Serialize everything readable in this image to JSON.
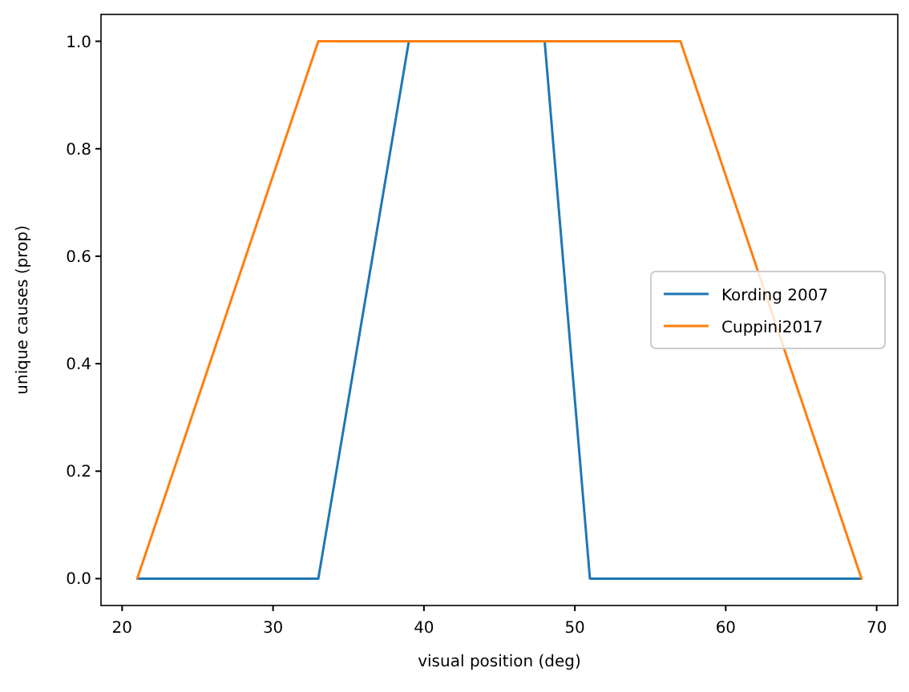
{
  "chart_data": {
    "type": "line",
    "xlabel": "visual position (deg)",
    "ylabel": "unique causes (prop)",
    "series": [
      {
        "name": "Kording 2007",
        "color": "#1f77b4",
        "x": [
          21,
          33,
          39,
          48,
          51,
          69
        ],
        "values": [
          0,
          0,
          1,
          1,
          0,
          0
        ]
      },
      {
        "name": "Cuppini2017",
        "color": "#ff7f0e",
        "x": [
          21,
          33,
          57,
          69
        ],
        "values": [
          0,
          1,
          1,
          0
        ]
      }
    ],
    "xlim": [
      18.6,
      71.4
    ],
    "ylim": [
      -0.05,
      1.05
    ],
    "xticks": [
      20,
      30,
      40,
      50,
      60,
      70
    ],
    "yticks": [
      {
        "value": 0,
        "label": "0.0"
      },
      0.2,
      0.4,
      0.6,
      0.8,
      {
        "value": 1,
        "label": "1.0"
      }
    ],
    "legend": "center right",
    "grid": false,
    "marker": "none",
    "line_style": "solid"
  }
}
